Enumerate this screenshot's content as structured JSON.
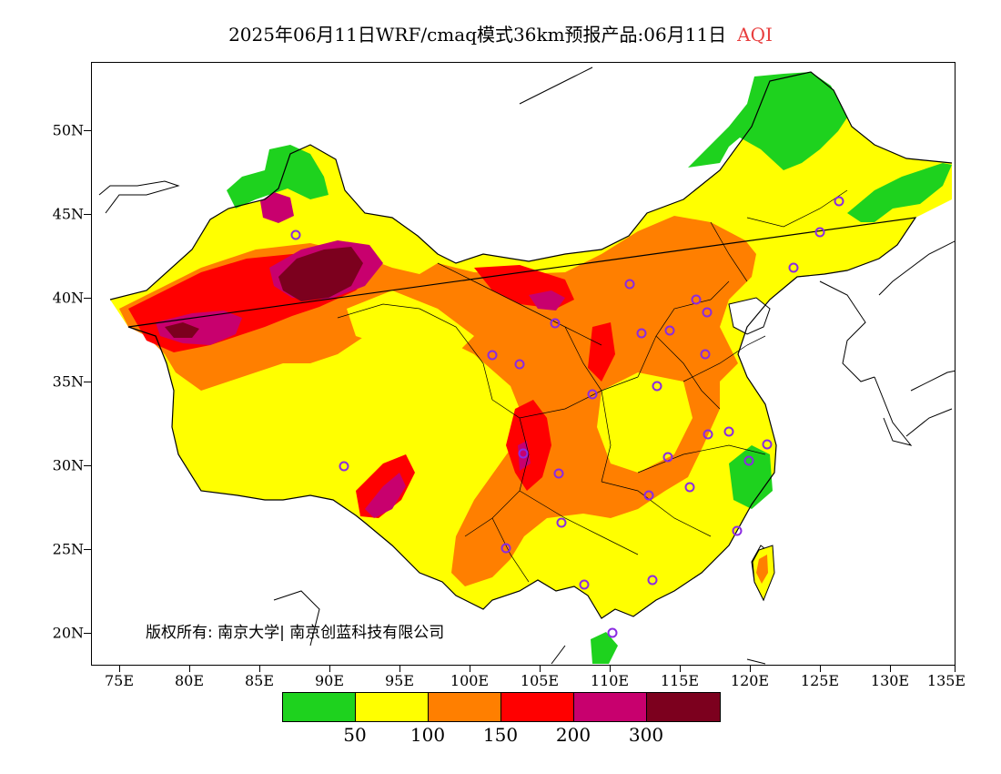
{
  "title": {
    "main": "2025年06月11日WRF/cmaq模式36km预报产品:06月11日",
    "variable": "AQI"
  },
  "map": {
    "lat_labels": [
      "50N",
      "45N",
      "40N",
      "35N",
      "30N",
      "25N",
      "20N"
    ],
    "lon_labels": [
      "75E",
      "80E",
      "85E",
      "90E",
      "95E",
      "100E",
      "105E",
      "110E",
      "115E",
      "120E",
      "125E",
      "130E",
      "135E"
    ],
    "copyright": "版权所有: 南京大学| 南京创蓝科技有限公司"
  },
  "legend": {
    "colors": [
      "#1ed21e",
      "#ffff00",
      "#ff7f00",
      "#ff0000",
      "#c8006e",
      "#7c001e"
    ],
    "labels": [
      "50",
      "100",
      "150",
      "200",
      "300"
    ]
  },
  "colors": {
    "good": "#1ed21e",
    "moderate": "#ffff00",
    "unhealthy_sensitive": "#ff7f00",
    "unhealthy": "#ff0000",
    "very_unhealthy": "#c8006e",
    "hazardous": "#7c001e",
    "station_marker": "#8a2be2"
  }
}
